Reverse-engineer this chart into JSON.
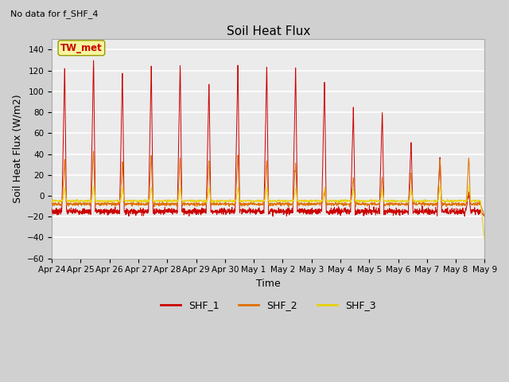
{
  "title": "Soil Heat Flux",
  "subtitle": "No data for f_SHF_4",
  "xlabel": "Time",
  "ylabel": "Soil Heat Flux (W/m2)",
  "ylim": [
    -60,
    150
  ],
  "yticks": [
    -60,
    -40,
    -20,
    0,
    20,
    40,
    60,
    80,
    100,
    120,
    140
  ],
  "legend_labels": [
    "SHF_1",
    "SHF_2",
    "SHF_3"
  ],
  "line_colors": [
    "#cc0000",
    "#e07000",
    "#e8d000"
  ],
  "annotation_text": "TW_met",
  "annotation_color": "#cc0000",
  "annotation_bg": "#f5f5a0",
  "plot_bg": "#ebebeb",
  "fig_bg": "#d0d0d0",
  "tick_labels": [
    "Apr 24",
    "Apr 25",
    "Apr 26",
    "Apr 27",
    "Apr 28",
    "Apr 29",
    "Apr 30",
    "May 1",
    "May 2",
    "May 3",
    "May 4",
    "May 5",
    "May 6",
    "May 7",
    "May 8",
    "May 9"
  ],
  "amp1": [
    126,
    134,
    121,
    126,
    128,
    111,
    128,
    128,
    126,
    112,
    86,
    83,
    53,
    37,
    5
  ],
  "amp2": [
    35,
    45,
    33,
    40,
    38,
    35,
    40,
    35,
    33,
    5,
    18,
    18,
    22,
    38,
    38
  ],
  "amp3": [
    8,
    10,
    8,
    8,
    8,
    8,
    8,
    8,
    8,
    8,
    6,
    6,
    6,
    10,
    10
  ],
  "base1": -15,
  "base2": -8,
  "base3": -5,
  "n_days": 15,
  "n_per_day": 144
}
